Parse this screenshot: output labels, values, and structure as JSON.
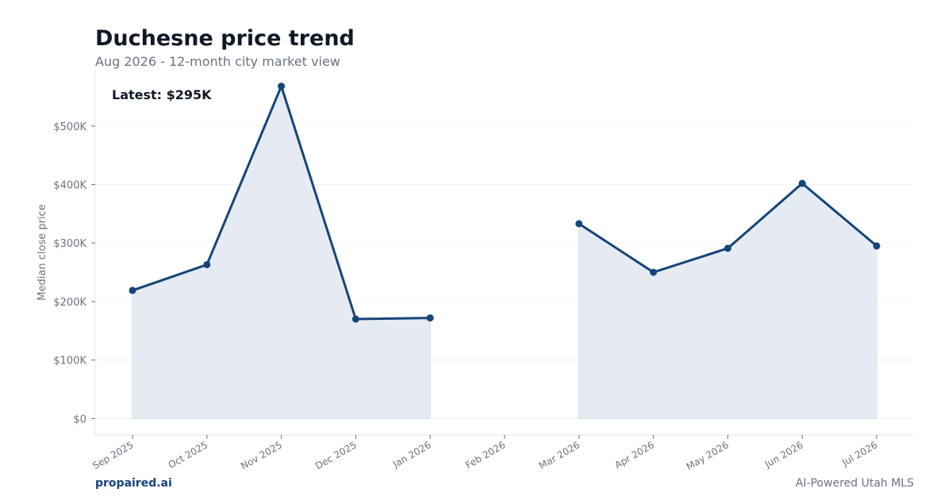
{
  "header": {
    "title": "Duchesne price trend",
    "subtitle": "Aug 2026 - 12-month city market view"
  },
  "footer": {
    "brand": "propaired.ai",
    "tagline": "AI-Powered Utah MLS"
  },
  "colors": {
    "line": "#14457a",
    "fill": "#e6ebf3",
    "grid": "#f1f3f6",
    "axis": "#e3e5e8",
    "tick": "#6b7280"
  },
  "chart_data": {
    "type": "area",
    "title": "Duchesne price trend",
    "subtitle": "Aug 2026 - 12-month city market view",
    "ylabel": "Median close price",
    "xlabel": "",
    "annotation": "Latest: $295K",
    "categories": [
      "Sep 2025",
      "Oct 2025",
      "Nov 2025",
      "Dec 2025",
      "Jan 2026",
      "Feb 2026",
      "Mar 2026",
      "Apr 2026",
      "May 2026",
      "Jun 2026",
      "Jul 2026"
    ],
    "values": [
      219000,
      263000,
      568000,
      170000,
      172000,
      null,
      333000,
      250000,
      291000,
      402000,
      295000
    ],
    "yticks": [
      0,
      100000,
      200000,
      300000,
      400000,
      500000
    ],
    "ytick_labels": [
      "$0",
      "$100K",
      "$200K",
      "$300K",
      "$400K",
      "$500K"
    ],
    "ylim": [
      -28000,
      596000
    ],
    "grid": true
  }
}
